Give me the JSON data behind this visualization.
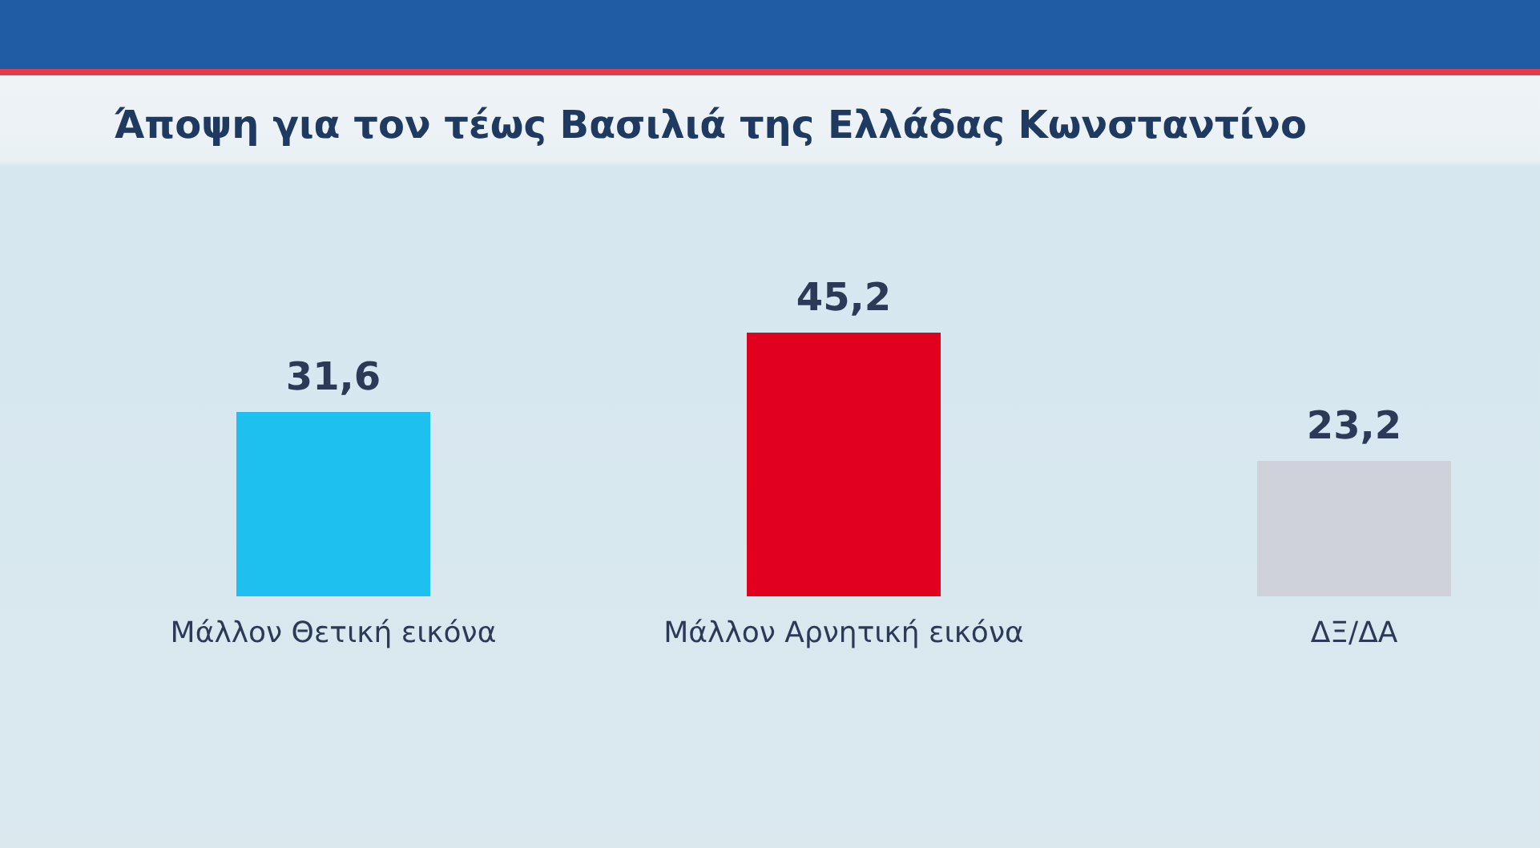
{
  "chart_data": {
    "type": "bar",
    "title": "Άποψη για τον τέως Βασιλιά της Ελλάδας Κωνσταντίνο",
    "categories": [
      "Μάλλον Θετική εικόνα",
      "Μάλλον Αρνητική εικόνα",
      "ΔΞ/ΔΑ"
    ],
    "values": [
      31.6,
      45.2,
      23.2
    ],
    "colors": [
      "#1ec0f0",
      "#e2001f",
      "#cfd3d9"
    ],
    "value_labels": [
      "31,6",
      "45,2",
      "23,2"
    ],
    "tick_labels": "x",
    "grid": false
  }
}
